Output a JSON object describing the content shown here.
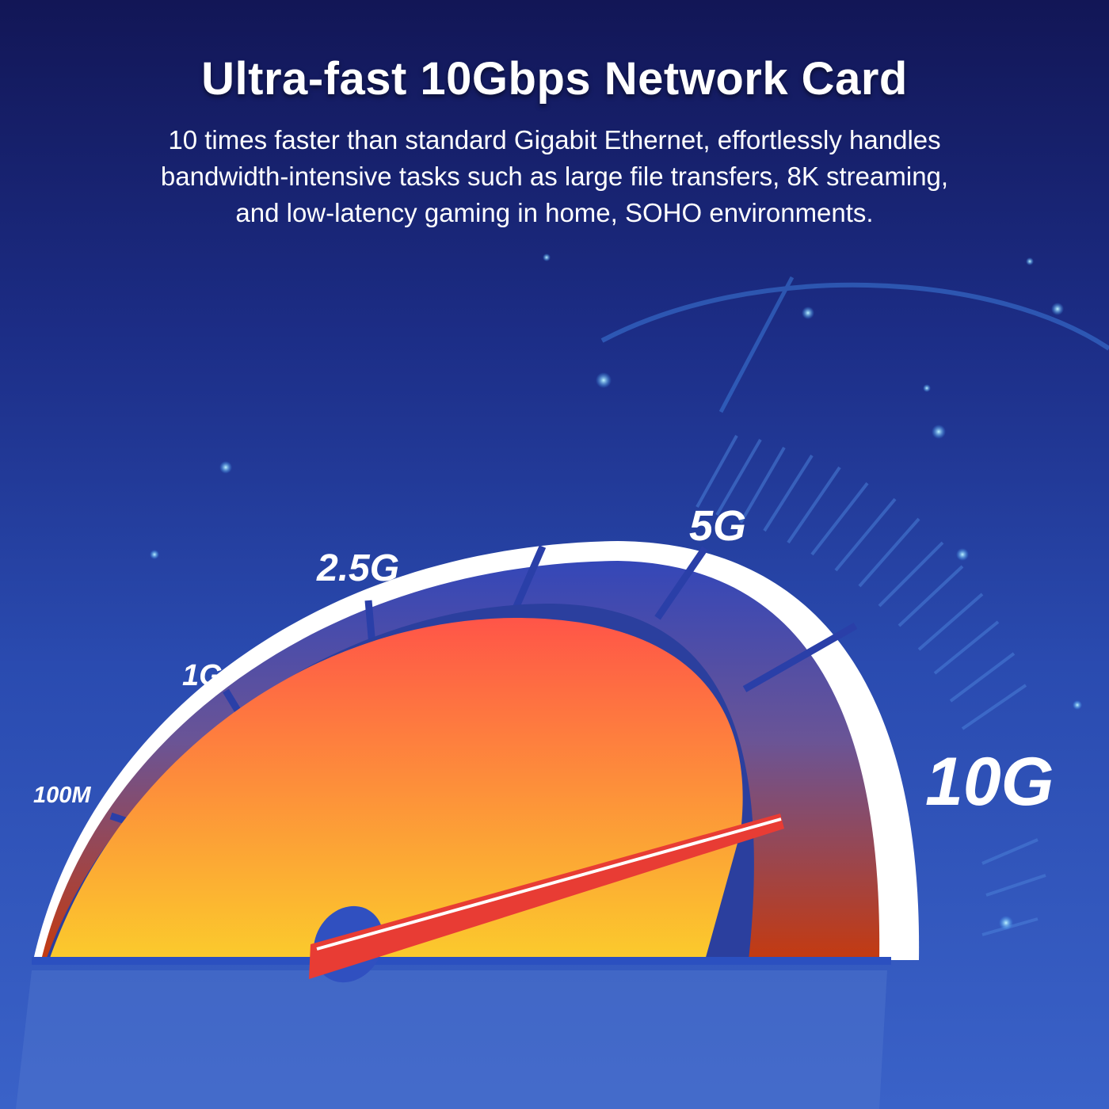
{
  "header": {
    "title": "Ultra-fast 10Gbps Network Card",
    "subtitle_lines": [
      "10 times faster than standard Gigabit Ethernet, effortlessly handles",
      "bandwidth-intensive tasks such as large file transfers, 8K streaming,",
      "and low-latency gaming in home, SOHO environments."
    ]
  },
  "gauge": {
    "labels": [
      "100M",
      "1G",
      "2.5G",
      "5G",
      "10G"
    ],
    "needle_value": "10G",
    "colors": {
      "dome_top": "#ff5548",
      "dome_bottom": "#fbcb2c",
      "needle": "#e83c34",
      "band_top": "#3447b8",
      "band_bottom": "#c43a10",
      "rim": "#ffffff"
    }
  }
}
